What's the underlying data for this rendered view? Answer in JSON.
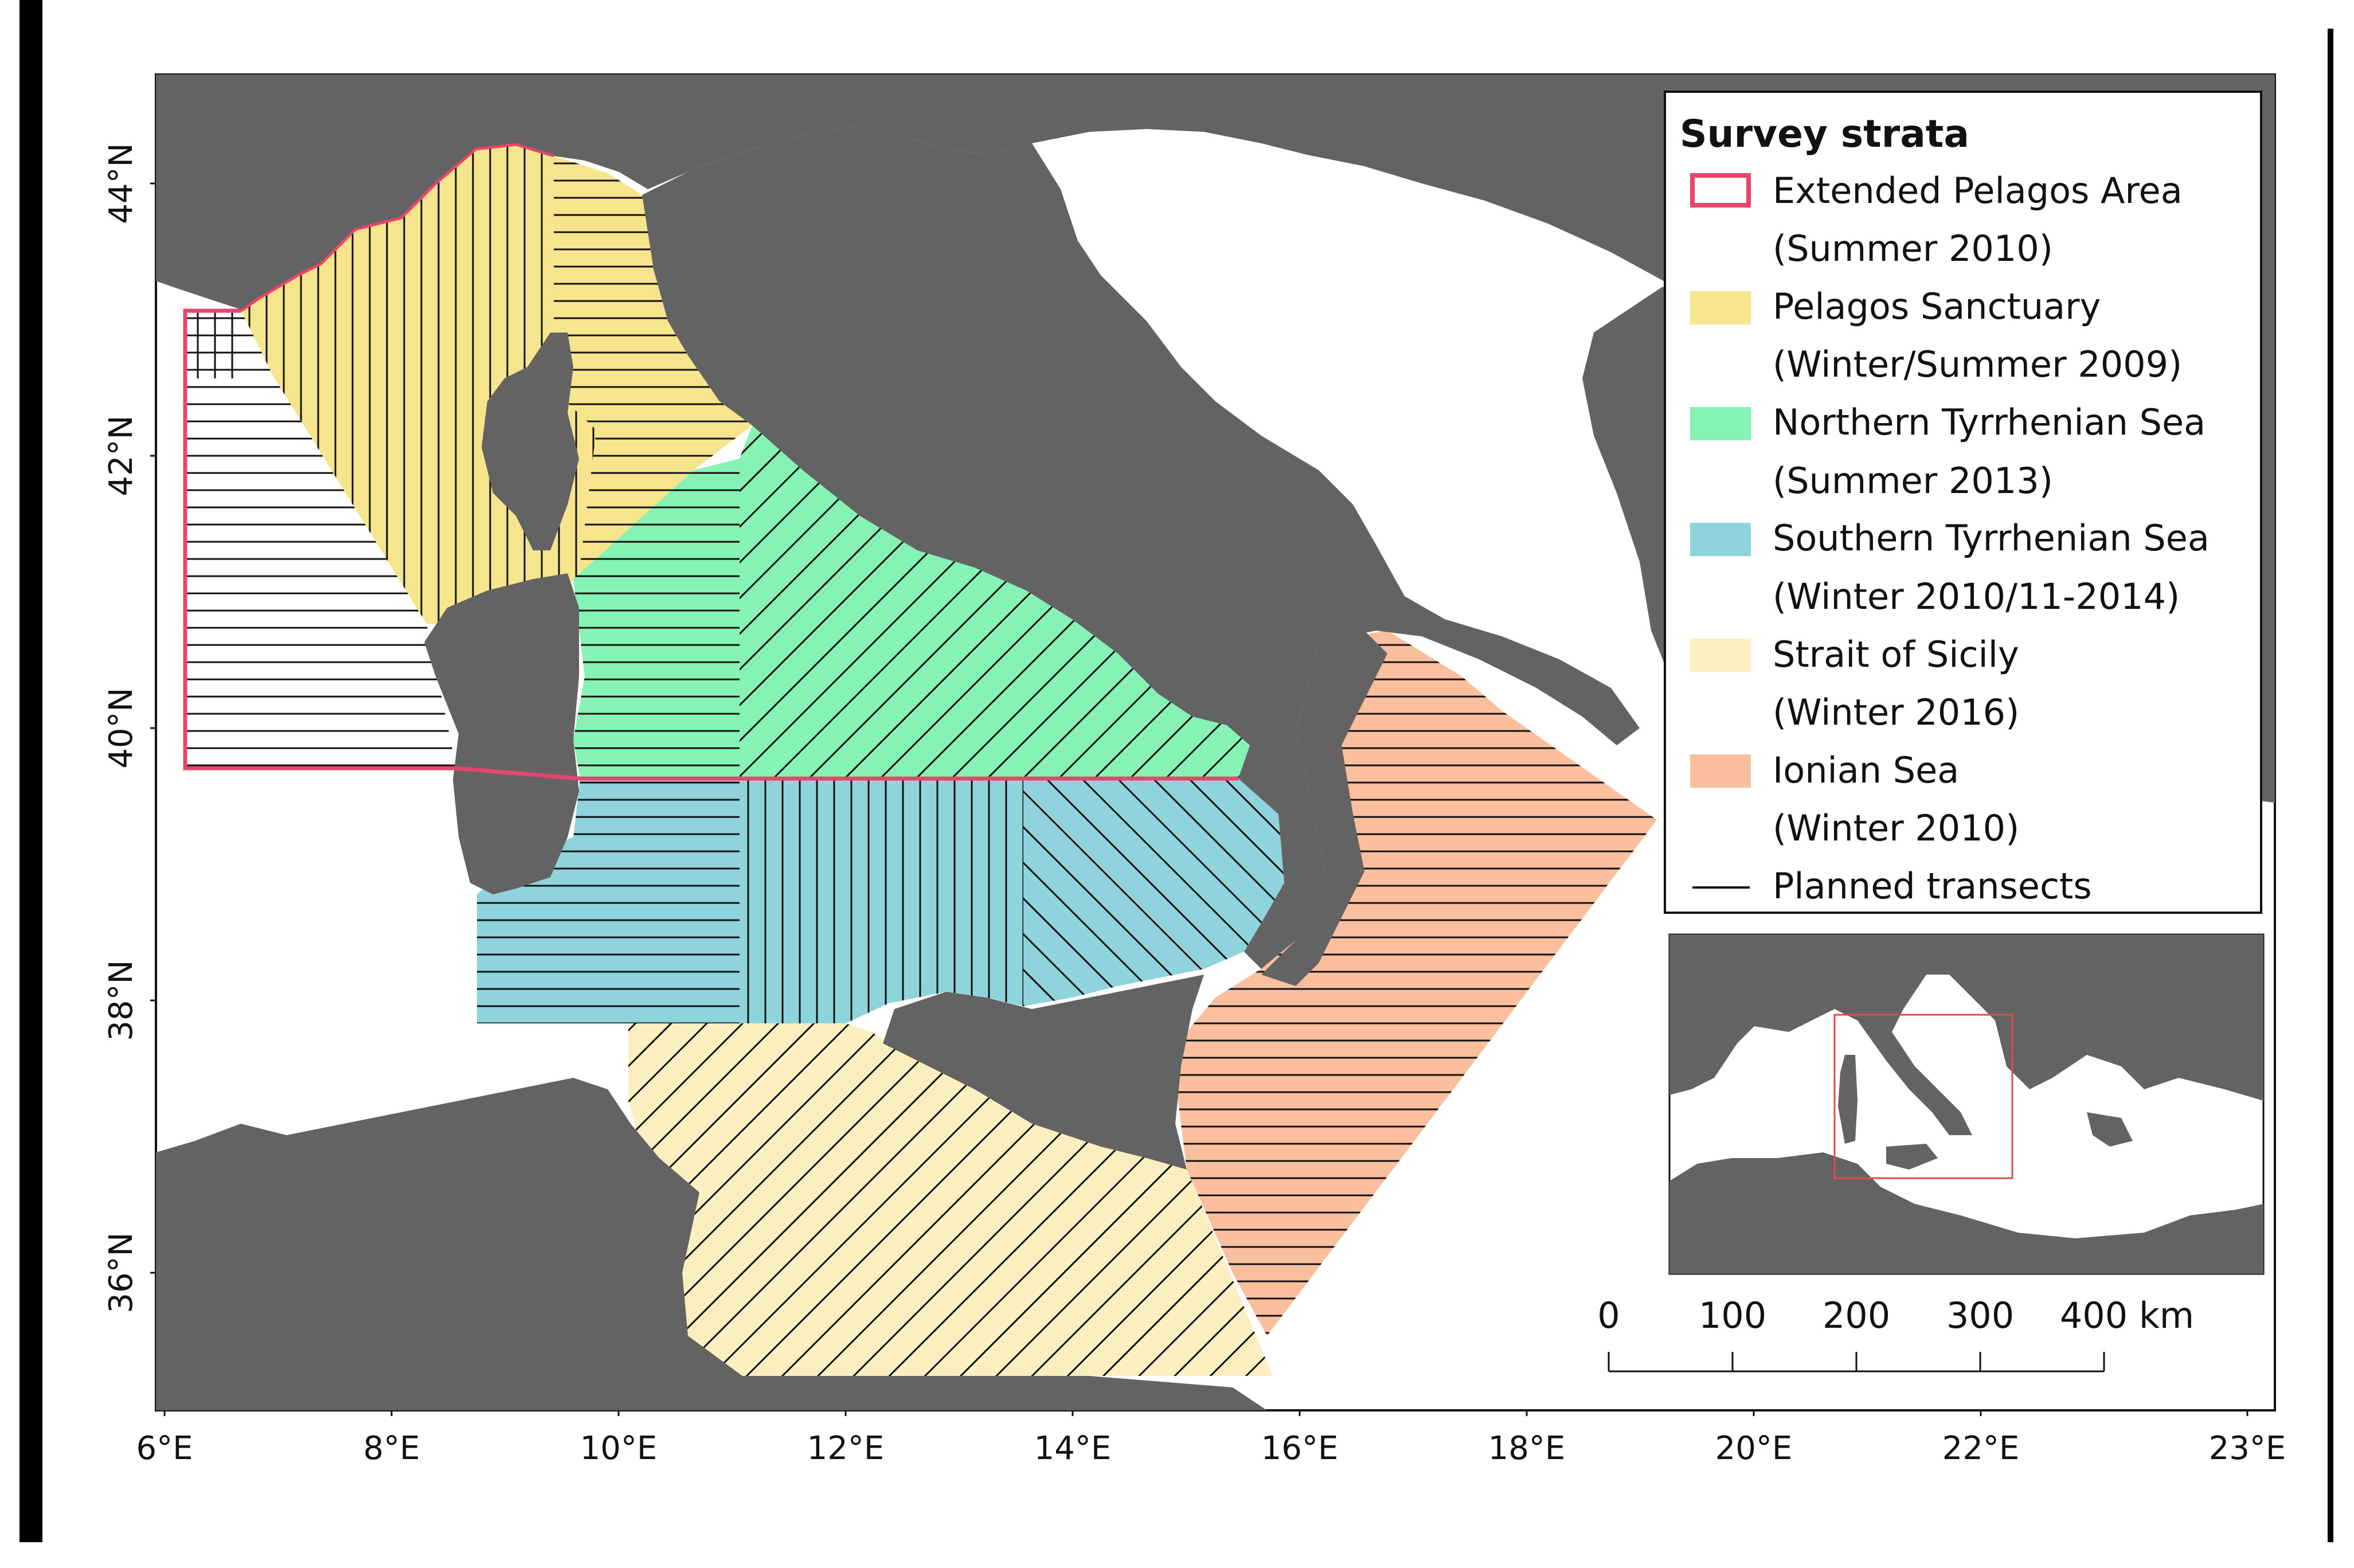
{
  "map": {
    "type": "choropleth",
    "axes": {
      "x_ticks": [
        "6°E",
        "8°E",
        "10°E",
        "12°E",
        "14°E",
        "16°E",
        "18°E",
        "20°E",
        "22°E",
        "23°E"
      ],
      "y_ticks": [
        "44°N",
        "42°N",
        "40°N",
        "38°N",
        "36°N"
      ]
    },
    "legend": {
      "title": "Survey strata",
      "items": [
        {
          "label": "Extended Pelagos Area",
          "sub": "(Summer 2010)",
          "style": "outline",
          "color": "#e8456b"
        },
        {
          "label": "Pelagos Sanctuary",
          "sub": "(Winter/Summer 2009)",
          "style": "fill",
          "color": "#f7e58d"
        },
        {
          "label": "Northern Tyrrhenian Sea",
          "sub": "(Summer 2013)",
          "style": "fill",
          "color": "#86f3b4"
        },
        {
          "label": "Southern Tyrrhenian Sea",
          "sub": "(Winter 2010/11-2014)",
          "style": "fill",
          "color": "#8fd3dd"
        },
        {
          "label": "Strait of Sicily",
          "sub": "(Winter 2016)",
          "style": "fill",
          "color": "#fbefc0"
        },
        {
          "label": "Ionian Sea",
          "sub": "(Winter 2010)",
          "style": "fill",
          "color": "#fcbf9e"
        },
        {
          "label": "Planned transects",
          "sub": "",
          "style": "line",
          "color": "#000000"
        }
      ]
    },
    "scale_bar": {
      "labels": [
        "0",
        "100",
        "200",
        "300",
        "400 km"
      ]
    },
    "colors": {
      "land": "#636363",
      "sea": "#ffffff",
      "outline": "#e8456b",
      "inset_box": "#e0484a"
    }
  }
}
